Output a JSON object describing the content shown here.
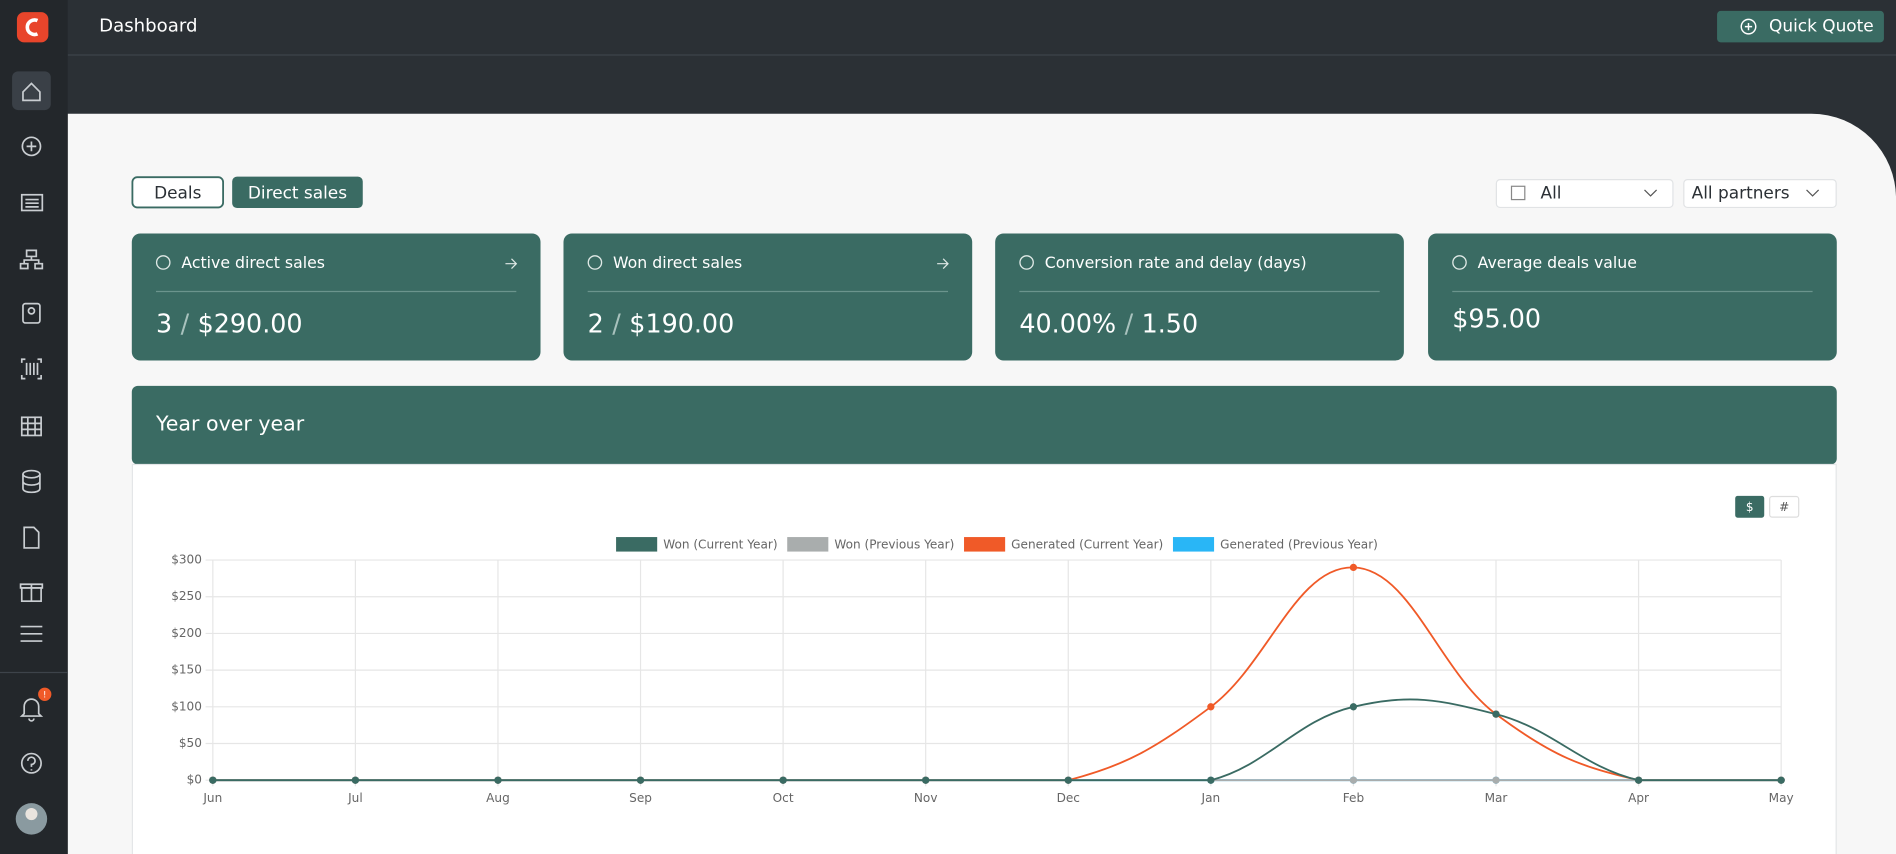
{
  "header": {
    "title": "Dashboard",
    "quick_quote": "Quick Quote",
    "badge": "!"
  },
  "tabs": [
    "Deals",
    "Direct sales"
  ],
  "filters": [
    "All",
    "All partners"
  ],
  "cards": [
    {
      "title": "Active direct sales",
      "value": [
        "3",
        "/",
        "$290.00"
      ]
    },
    {
      "title": "Won direct sales",
      "value": [
        "2",
        "/",
        "$190.00"
      ]
    },
    {
      "title": "Conversion rate and delay (days)",
      "value": [
        "40.00%",
        "/",
        "1.50"
      ]
    },
    {
      "title": "Average deals value",
      "value": [
        "$95.00"
      ]
    }
  ],
  "panel": {
    "title": "Year over year",
    "toggles": [
      "$",
      "#"
    ]
  },
  "chart_data": {
    "type": "line",
    "categories": [
      "Jun",
      "Jul",
      "Aug",
      "Sep",
      "Oct",
      "Nov",
      "Dec",
      "Jan",
      "Feb",
      "Mar",
      "Apr",
      "May"
    ],
    "series": [
      {
        "name": "Won (Current Year)",
        "color": "#3a6b63",
        "values": [
          0,
          0,
          0,
          0,
          0,
          0,
          0,
          0,
          100,
          90,
          0,
          0
        ]
      },
      {
        "name": "Won (Previous Year)",
        "color": "#a9adad",
        "values": [
          0,
          0,
          0,
          0,
          0,
          0,
          0,
          0,
          0,
          0,
          0,
          0
        ]
      },
      {
        "name": "Generated (Current Year)",
        "color": "#f05a28",
        "values": [
          0,
          0,
          0,
          0,
          0,
          0,
          0,
          100,
          290,
          90,
          0,
          0
        ]
      },
      {
        "name": "Generated (Previous Year)",
        "color": "#29b6f6",
        "values": [
          0,
          0,
          0,
          0,
          0,
          0,
          0,
          0,
          0,
          0,
          0,
          0
        ]
      }
    ],
    "ylim": [
      0,
      300
    ],
    "yticks": [
      {
        "value": 0,
        "label": "$0"
      },
      {
        "value": 50,
        "label": "$50"
      },
      {
        "value": 100,
        "label": "$100"
      },
      {
        "value": 150,
        "label": "$150"
      },
      {
        "value": 200,
        "label": "$200"
      },
      {
        "value": 250,
        "label": "$250"
      },
      {
        "value": 300,
        "label": "$300"
      }
    ],
    "grid": true
  }
}
